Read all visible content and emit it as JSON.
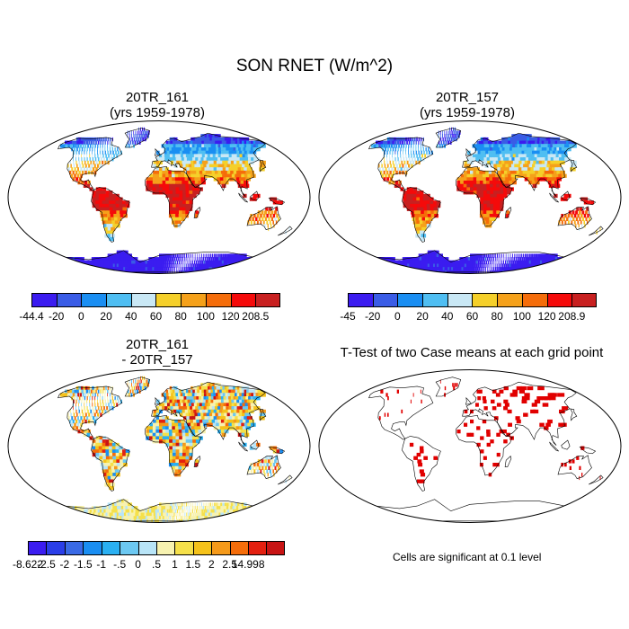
{
  "title": "SON RNET (W/m^2)",
  "panels": [
    {
      "title1": "20TR_161",
      "title2": "(yrs 1959-1978)"
    },
    {
      "title1": "20TR_157",
      "title2": "(yrs 1959-1978)"
    },
    {
      "title1": "20TR_161",
      "title2": "- 20TR_157"
    },
    {
      "title1": "T-Test of two Case means at each grid point",
      "title2": ""
    }
  ],
  "colorbars": {
    "abs_colors": [
      "#3b1cf0",
      "#3a5ce6",
      "#1a8ef2",
      "#4fbef2",
      "#c9e8f5",
      "#f5d02a",
      "#f5a11a",
      "#f56d0a",
      "#f50a0a",
      "#c82020"
    ],
    "diff_colors": [
      "#3b1cf0",
      "#2a3ee8",
      "#3a6ae6",
      "#1a8ef2",
      "#2ab0f2",
      "#6cc8f2",
      "#b8e4f7",
      "#f7f2b0",
      "#f5e04a",
      "#f5c21a",
      "#f59a1a",
      "#f56d0a",
      "#e32010",
      "#c81414"
    ],
    "left_labels": [
      "-44.4",
      "-20",
      "0",
      "20",
      "40",
      "60",
      "80",
      "100",
      "120",
      "208.5"
    ],
    "right_labels": [
      "-45",
      "-20",
      "0",
      "20",
      "40",
      "60",
      "80",
      "100",
      "120",
      "208.9"
    ],
    "diff_labels": [
      "-8.622",
      "-2.5",
      "-2",
      "-1.5",
      "-1",
      "-.5",
      "0",
      ".5",
      "1",
      "1.5",
      "2",
      "2.5",
      "14.998"
    ]
  },
  "significance_note": "Cells are significant at 0.1 level",
  "icons": [
    "robinson-world-map",
    "colorbar",
    "significance-map"
  ]
}
